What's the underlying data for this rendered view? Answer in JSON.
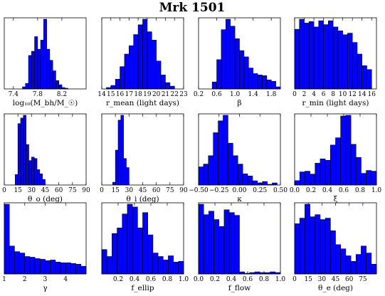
{
  "title": "Mrk 1501",
  "chart_data": [
    {
      "type": "bar",
      "xlabel": "log₁₀(M_bh/M_☉)",
      "xlim": [
        7.25,
        8.6
      ],
      "xticks": [
        7.4,
        7.8,
        8.2
      ],
      "xticklabels": [
        "7.4",
        "7.8",
        "8.2"
      ],
      "bin_edges": [
        7.55,
        7.6,
        7.65,
        7.7,
        7.75,
        7.8,
        7.85,
        7.9,
        7.95,
        8.0,
        8.05,
        8.1,
        8.15,
        8.2,
        8.25,
        8.3
      ],
      "values": [
        3,
        8,
        48,
        54,
        75,
        57,
        70,
        100,
        57,
        41,
        26,
        12,
        6,
        2,
        1
      ]
    },
    {
      "type": "bar",
      "xlabel": "r_mean (light days)",
      "xlim": [
        14,
        23
      ],
      "xticks": [
        14,
        15,
        16,
        17,
        18,
        19,
        20,
        21,
        22,
        23
      ],
      "xticklabels": [
        "14",
        "15",
        "16",
        "17",
        "18",
        "19",
        "20",
        "21",
        "22",
        "23"
      ],
      "bin_edges": [
        14.5,
        15,
        15.5,
        16,
        16.5,
        17,
        17.5,
        18,
        18.5,
        19,
        19.5,
        20,
        20.5,
        21,
        21.5,
        22
      ],
      "values": [
        2,
        5,
        14,
        32,
        50,
        62,
        78,
        92,
        100,
        82,
        70,
        40,
        20,
        9,
        4
      ]
    },
    {
      "type": "bar",
      "xlabel": "β",
      "xlim": [
        0.2,
        2.0
      ],
      "xticks": [
        0.2,
        0.6,
        1.0,
        1.4,
        1.8
      ],
      "xticklabels": [
        "0.2",
        "0.6",
        "1.0",
        "1.4",
        "1.8"
      ],
      "bin_edges": [
        0.5,
        0.6,
        0.7,
        0.8,
        0.9,
        1.0,
        1.1,
        1.2,
        1.3,
        1.4,
        1.5,
        1.6,
        1.7,
        1.8,
        1.9,
        2.0
      ],
      "values": [
        10,
        42,
        85,
        100,
        90,
        72,
        55,
        46,
        30,
        22,
        20,
        19,
        13,
        11,
        3
      ]
    },
    {
      "type": "bar",
      "xlabel": "r_min (light days)",
      "xlim": [
        0,
        17
      ],
      "xticks": [
        0,
        2,
        4,
        6,
        8,
        10,
        12,
        14,
        16
      ],
      "xticklabels": [
        "0",
        "2",
        "4",
        "6",
        "8",
        "10",
        "12",
        "14",
        "16"
      ],
      "bin_edges": [
        0,
        1,
        2,
        3,
        4,
        5,
        6,
        7,
        8,
        9,
        10,
        11,
        12,
        13,
        14,
        15,
        16
      ],
      "values": [
        77,
        90,
        85,
        87,
        80,
        88,
        83,
        88,
        80,
        75,
        70,
        72,
        60,
        45,
        30,
        25
      ]
    },
    {
      "type": "bar",
      "xlabel": "θ_o (deg)",
      "xlim": [
        0,
        90
      ],
      "xticks": [
        0,
        15,
        30,
        45,
        60,
        75,
        90
      ],
      "xticklabels": [
        "0",
        "15",
        "30",
        "45",
        "60",
        "75",
        "90"
      ],
      "bin_edges": [
        12,
        15,
        18,
        21,
        24,
        27,
        30,
        33,
        36,
        39,
        42,
        45
      ],
      "values": [
        15,
        88,
        96,
        100,
        58,
        35,
        40,
        38,
        22,
        16,
        8
      ]
    },
    {
      "type": "bar",
      "xlabel": "θ_i (deg)",
      "xlim": [
        0,
        90
      ],
      "xticks": [
        0,
        15,
        30,
        45,
        60,
        75,
        90
      ],
      "xticklabels": [
        "0",
        "15",
        "30",
        "45",
        "60",
        "75",
        "90"
      ],
      "bin_edges": [
        12,
        15,
        18,
        21,
        24,
        27,
        30
      ],
      "values": [
        4,
        50,
        93,
        100,
        38,
        25
      ]
    },
    {
      "type": "bar",
      "xlabel": "κ",
      "xlim": [
        -0.5,
        0.5
      ],
      "xticks": [
        -0.5,
        -0.25,
        0,
        0.25,
        0.5
      ],
      "xticklabels": [
        "−0.50",
        "−0.25",
        "0.00",
        "0.25",
        "0.50"
      ],
      "bin_edges": [
        -0.5,
        -0.44,
        -0.38,
        -0.32,
        -0.26,
        -0.2,
        -0.14,
        -0.08,
        -0.02,
        0.04,
        0.1,
        0.16,
        0.22,
        0.28,
        0.34,
        0.4,
        0.46
      ],
      "values": [
        26,
        30,
        42,
        75,
        92,
        100,
        60,
        42,
        30,
        16,
        13,
        6,
        3,
        5,
        1,
        3
      ]
    },
    {
      "type": "bar",
      "xlabel": "ξ",
      "xlim": [
        0,
        1
      ],
      "xticks": [
        0,
        0.2,
        0.4,
        0.6,
        0.8,
        1.0
      ],
      "xticklabels": [
        "0.0",
        "0.2",
        "0.4",
        "0.6",
        "0.8",
        "1.0"
      ],
      "bin_edges": [
        0,
        0.0625,
        0.125,
        0.1875,
        0.25,
        0.3125,
        0.375,
        0.4375,
        0.5,
        0.5625,
        0.625,
        0.6875,
        0.75,
        0.8125,
        0.875,
        0.9375,
        1.0
      ],
      "values": [
        6,
        18,
        19,
        15,
        30,
        36,
        34,
        55,
        65,
        95,
        96,
        56,
        38,
        16,
        20,
        19
      ]
    },
    {
      "type": "bar",
      "xlabel": "γ",
      "xlim": [
        1,
        5
      ],
      "xticks": [
        1,
        2,
        3,
        4
      ],
      "xticklabels": [
        "1",
        "2",
        "3",
        "4"
      ],
      "bin_edges": [
        1,
        1.25,
        1.5,
        1.75,
        2,
        2.25,
        2.5,
        2.75,
        3,
        3.25,
        3.5,
        3.75,
        4,
        4.25,
        4.5,
        4.75,
        5
      ],
      "values": [
        100,
        40,
        32,
        30,
        25,
        24,
        22,
        21,
        19,
        20,
        17,
        16,
        16,
        15,
        14,
        11
      ]
    },
    {
      "type": "bar",
      "xlabel": "f_ellip",
      "xlim": [
        0,
        1
      ],
      "xticks": [
        0.2,
        0.4,
        0.6,
        0.8,
        1.0
      ],
      "xticklabels": [
        "0.2",
        "0.4",
        "0.6",
        "0.8",
        "1.0"
      ],
      "bin_edges": [
        0,
        0.0625,
        0.125,
        0.1875,
        0.25,
        0.3125,
        0.375,
        0.4375,
        0.5,
        0.5625,
        0.625,
        0.6875,
        0.75,
        0.8125,
        0.875,
        0.9375,
        1.0
      ],
      "values": [
        35,
        25,
        58,
        66,
        86,
        100,
        96,
        66,
        88,
        56,
        30,
        25,
        20,
        26,
        17,
        18
      ]
    },
    {
      "type": "bar",
      "xlabel": "f_flow",
      "xlim": [
        0,
        1
      ],
      "xticks": [
        0,
        0.2,
        0.4,
        0.6,
        0.8,
        1.0
      ],
      "xticklabels": [
        "0.0",
        "0.2",
        "0.4",
        "0.6",
        "0.8",
        "1.0"
      ],
      "bin_edges": [
        0,
        0.0625,
        0.125,
        0.1875,
        0.25,
        0.3125,
        0.375,
        0.4375,
        0.5,
        0.5625,
        0.625,
        0.6875,
        0.75,
        0.8125,
        0.875,
        0.9375,
        1.0
      ],
      "values": [
        100,
        85,
        90,
        78,
        68,
        92,
        88,
        84,
        3,
        1,
        2,
        3,
        2,
        2,
        3,
        2
      ]
    },
    {
      "type": "bar",
      "xlabel": "θ_e (deg)",
      "xlim": [
        0,
        90
      ],
      "xticks": [
        0,
        15,
        30,
        45,
        60,
        75
      ],
      "xticklabels": [
        "0",
        "15",
        "30",
        "45",
        "60",
        "75"
      ],
      "bin_edges": [
        0,
        5.625,
        11.25,
        16.875,
        22.5,
        28.125,
        33.75,
        39.375,
        45,
        50.625,
        56.25,
        61.875,
        67.5,
        73.125,
        78.75,
        84.375,
        90
      ],
      "values": [
        72,
        80,
        100,
        82,
        85,
        78,
        80,
        62,
        42,
        36,
        26,
        18,
        28,
        40,
        30,
        14
      ]
    }
  ]
}
